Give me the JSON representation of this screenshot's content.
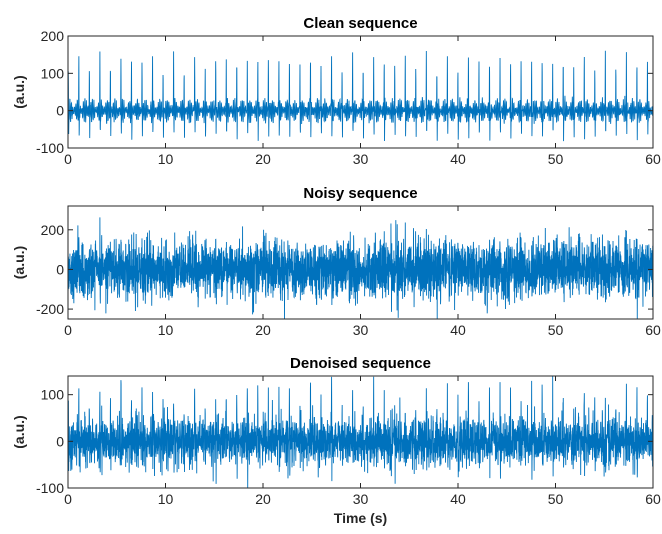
{
  "chart_data": [
    {
      "type": "line",
      "title": "Clean sequence",
      "xlabel": "",
      "ylabel": "(a.u.)",
      "xlim": [
        0,
        60
      ],
      "ylim": [
        -100,
        200
      ],
      "xticks": [
        0,
        10,
        20,
        30,
        40,
        50,
        60
      ],
      "yticks": [
        -100,
        0,
        100,
        200
      ],
      "grid": false,
      "series": [
        {
          "color": "#0072BD",
          "description_values": "periodic spike train, ~1.1 s period, peaks ~120-165, troughs ~-80, baseline oscillation ~±40",
          "values": [
            {
              "x": 0.0,
              "y": 0
            },
            {
              "x": 60.0,
              "y": 0
            }
          ]
        }
      ]
    },
    {
      "type": "line",
      "title": "Noisy sequence",
      "xlabel": "",
      "ylabel": "(a.u.)",
      "xlim": [
        0,
        60
      ],
      "ylim": [
        -250,
        320
      ],
      "xticks": [
        0,
        10,
        20,
        30,
        40,
        50,
        60
      ],
      "yticks": [
        -200,
        0,
        200
      ],
      "grid": false,
      "series": [
        {
          "color": "#0072BD",
          "values": [
            {
              "x": 0.0,
              "y": 0
            },
            {
              "x": 60.0,
              "y": 0
            }
          ]
        }
      ]
    },
    {
      "type": "line",
      "title": "Denoised sequence",
      "xlabel": "Time (s)",
      "ylabel": "(a.u.)",
      "xlim": [
        0,
        60
      ],
      "ylim": [
        -100,
        140
      ],
      "xticks": [
        0,
        10,
        20,
        30,
        40,
        50,
        60
      ],
      "yticks": [
        -100,
        0,
        100
      ],
      "grid": false,
      "series": [
        {
          "color": "#0072BD",
          "values": [
            {
              "x": 0.0,
              "y": 0
            },
            {
              "x": 60.0,
              "y": 0
            }
          ]
        }
      ]
    }
  ]
}
